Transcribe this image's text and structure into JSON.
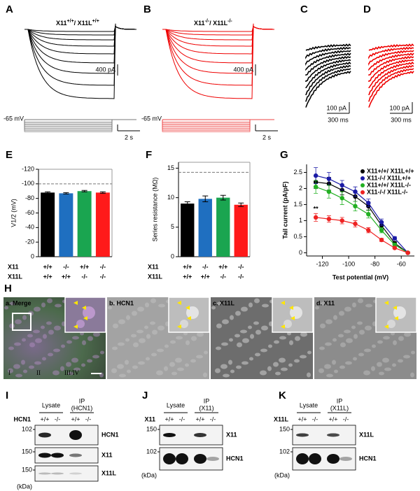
{
  "panels": {
    "A": {
      "label": "A",
      "title": [
        "X11",
        "+/+",
        "/ X11L",
        "+/+"
      ],
      "scale_current": "400 pA",
      "scale_time": "2 s",
      "holding": "-65 mV"
    },
    "B": {
      "label": "B",
      "title": [
        "X11",
        "-/-",
        "/ X11L",
        "-/-"
      ],
      "scale_current": "400 pA",
      "scale_time": "2 s",
      "holding": "-65 mV"
    },
    "C": {
      "label": "C",
      "scale_current": "100 pA",
      "scale_time": "300 ms"
    },
    "D": {
      "label": "D",
      "scale_current": "100 pA",
      "scale_time": "300 ms"
    },
    "H": {
      "label": "H",
      "images": [
        "a. Merge",
        "b. HCN1",
        "c. X11L",
        "d. X11"
      ],
      "layers": [
        "I",
        "II",
        "III/IV"
      ]
    },
    "I": {
      "label": "I",
      "lysate": "Lysate",
      "ip": [
        "IP",
        "(HCN1)"
      ],
      "genotype_label": "HCN1",
      "genotypes": [
        "+/+",
        "-/-",
        "+/+",
        "-/-"
      ],
      "markers": [
        102,
        150,
        150
      ],
      "bands": [
        "HCN1",
        "X11",
        "X11L"
      ],
      "unit": "(kDa)"
    },
    "J": {
      "label": "J",
      "lysate": "Lysate",
      "ip": [
        "IP",
        "(X11)"
      ],
      "genotype_label": "X11",
      "genotypes": [
        "+/+",
        "-/-",
        "+/+",
        "-/-"
      ],
      "markers": [
        150,
        102
      ],
      "bands": [
        "X11",
        "HCN1"
      ],
      "unit": "(kDa)"
    },
    "K": {
      "label": "K",
      "lysate": "Lysate",
      "ip": [
        "IP",
        "(X11L)"
      ],
      "genotype_label": "X11L",
      "genotypes": [
        "+/+",
        "-/-",
        "+/+",
        "-/-"
      ],
      "markers": [
        150,
        102
      ],
      "bands": [
        "X11L",
        "HCN1"
      ],
      "unit": "(kDa)"
    }
  },
  "chart_data": [
    {
      "type": "bar",
      "label": "E",
      "ylabel": "V1/2 (mV)",
      "row_labels": [
        "X11",
        "X11L"
      ],
      "categories": [
        [
          "+/+",
          "+/+"
        ],
        [
          "-/-",
          "+/+"
        ],
        [
          "+/+",
          "-/-"
        ],
        [
          "-/-",
          "-/-"
        ]
      ],
      "values": [
        -88,
        -87,
        -90,
        -88
      ],
      "errors": [
        1,
        1,
        1,
        1
      ],
      "colors": [
        "#000000",
        "#1f6fc0",
        "#1aa550",
        "#ff1a1a"
      ],
      "ylim": [
        0,
        -120
      ],
      "yticks": [
        0,
        -20,
        -40,
        -60,
        -80,
        -100,
        -120
      ],
      "reference_line": -100
    },
    {
      "type": "bar",
      "label": "F",
      "ylabel": "Series resistance (MΩ)",
      "row_labels": [
        "X11",
        "X11L"
      ],
      "categories": [
        [
          "+/+",
          "+/+"
        ],
        [
          "-/-",
          "+/+"
        ],
        [
          "+/+",
          "-/-"
        ],
        [
          "-/-",
          "-/-"
        ]
      ],
      "values": [
        9.0,
        9.8,
        10.0,
        8.8
      ],
      "errors": [
        0.3,
        0.5,
        0.4,
        0.3
      ],
      "colors": [
        "#000000",
        "#1f6fc0",
        "#1aa550",
        "#ff1a1a"
      ],
      "ylim": [
        0,
        16
      ],
      "yticks": [
        0,
        5,
        10,
        15
      ],
      "reference_line": 14.3
    },
    {
      "type": "line",
      "label": "G",
      "xlabel": "Test potential (mV)",
      "ylabel": "Tail current (pA/pF)",
      "x": [
        -125,
        -115,
        -105,
        -95,
        -85,
        -75,
        -65,
        -55
      ],
      "xlim": [
        -132,
        -50
      ],
      "xticks": [
        -120,
        -100,
        -80,
        -60
      ],
      "ylim": [
        -0.1,
        2.75
      ],
      "yticks": [
        0,
        0.5,
        1.0,
        1.5,
        2.0,
        2.5
      ],
      "series": [
        {
          "name": "X11+/+/ X11L+/+",
          "color": "#000000",
          "values": [
            2.2,
            2.15,
            1.95,
            1.75,
            1.45,
            0.85,
            0.3,
            0
          ],
          "errors": [
            0.2,
            0.2,
            0.15,
            0.15,
            0.12,
            0.1,
            0.05,
            0.02
          ]
        },
        {
          "name": "X11-/-/ X11L+/+",
          "color": "#1a1aa6",
          "values": [
            2.4,
            2.3,
            2.1,
            1.9,
            1.55,
            0.95,
            0.45,
            0
          ],
          "errors": [
            0.25,
            0.2,
            0.15,
            0.15,
            0.12,
            0.1,
            0.05,
            0.02
          ]
        },
        {
          "name": "X11+/+/ X11L-/-",
          "color": "#22b022",
          "values": [
            2.05,
            1.9,
            1.7,
            1.45,
            1.2,
            0.7,
            0.25,
            0
          ],
          "errors": [
            0.2,
            0.2,
            0.2,
            0.15,
            0.12,
            0.08,
            0.05,
            0.02
          ]
        },
        {
          "name": "X11-/-/ X11L-/-",
          "color": "#ee2222",
          "values": [
            1.1,
            1.05,
            1.0,
            0.9,
            0.7,
            0.4,
            0.15,
            0
          ],
          "errors": [
            0.12,
            0.1,
            0.1,
            0.1,
            0.08,
            0.05,
            0.03,
            0.02
          ]
        }
      ],
      "annotation": "**",
      "annotation_x": -125,
      "annotation_y": 1.35
    }
  ]
}
